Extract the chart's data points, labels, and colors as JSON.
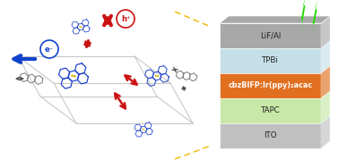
{
  "layers": [
    {
      "label": "LiF/Al",
      "color": "#a8a8a8",
      "bold": false,
      "text_color": "#222222"
    },
    {
      "label": "TPBi",
      "color": "#c5dfe8",
      "bold": false,
      "text_color": "#222222"
    },
    {
      "label": "cbzBIFP:Ir(ppy)₂acac",
      "color": "#e07020",
      "bold": true,
      "text_color": "#ffffff"
    },
    {
      "label": "TAPC",
      "color": "#c8e8a8",
      "bold": false,
      "text_color": "#222222"
    },
    {
      "label": "ITO",
      "color": "#c0c0c0",
      "bold": false,
      "text_color": "#222222"
    }
  ],
  "bg_color": "#ffffff",
  "dashed_line_color": "#f0b800",
  "lightning_color": "#22dd00",
  "arrow_blue_color": "#1144cc",
  "arrow_red_color": "#cc1111",
  "cell_color": "#c8c8c8",
  "mol_blue": "#2244cc",
  "mol_gray": "#808080",
  "mol_yellow": "#c8b400"
}
